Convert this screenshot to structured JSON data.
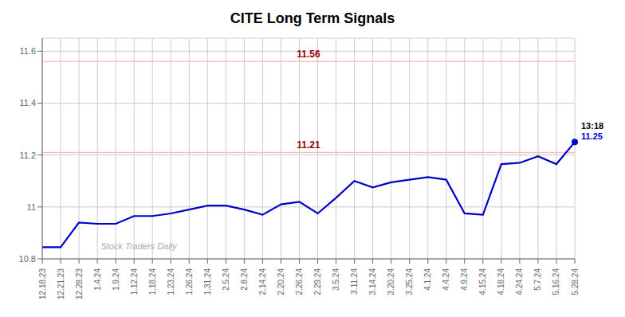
{
  "chart_data": {
    "type": "line",
    "title": "CITE Long Term Signals",
    "categories": [
      "12.18.23",
      "12.21.23",
      "12.28.23",
      "1.4.24",
      "1.9.24",
      "1.12.24",
      "1.18.24",
      "1.23.24",
      "1.26.24",
      "1.31.24",
      "2.5.24",
      "2.8.24",
      "2.14.24",
      "2.20.24",
      "2.26.24",
      "2.29.24",
      "3.5.24",
      "3.11.24",
      "3.14.24",
      "3.20.24",
      "3.25.24",
      "4.1.24",
      "4.4.24",
      "4.9.24",
      "4.15.24",
      "4.18.24",
      "4.24.24",
      "5.7.24",
      "5.16.24",
      "5.28.24"
    ],
    "values": [
      10.845,
      10.845,
      10.94,
      10.935,
      10.935,
      10.965,
      10.965,
      10.975,
      10.99,
      11.005,
      11.005,
      10.99,
      10.97,
      11.01,
      11.02,
      10.975,
      11.035,
      11.1,
      11.075,
      11.095,
      11.105,
      11.115,
      11.105,
      10.975,
      10.97,
      11.165,
      11.17,
      11.195,
      11.165,
      11.25
    ],
    "color": "#0000cc",
    "ylim": [
      10.8,
      11.65
    ],
    "yticks": [
      10.8,
      11.0,
      11.2,
      11.4,
      11.6
    ],
    "grid": true,
    "reference_lines": [
      {
        "value": 11.56,
        "label": "11.56",
        "color": "#ffbbbb",
        "label_color": "#990000"
      },
      {
        "value": 11.21,
        "label": "11.21",
        "color": "#ffbbbb",
        "label_color": "#990000"
      }
    ],
    "annotations": [
      {
        "text": "13:18",
        "color": "#000000"
      },
      {
        "text": "11.25",
        "color": "#0000cc"
      },
      {
        "text": "Stock Traders Daily",
        "color": "#aaaaaa"
      }
    ]
  }
}
